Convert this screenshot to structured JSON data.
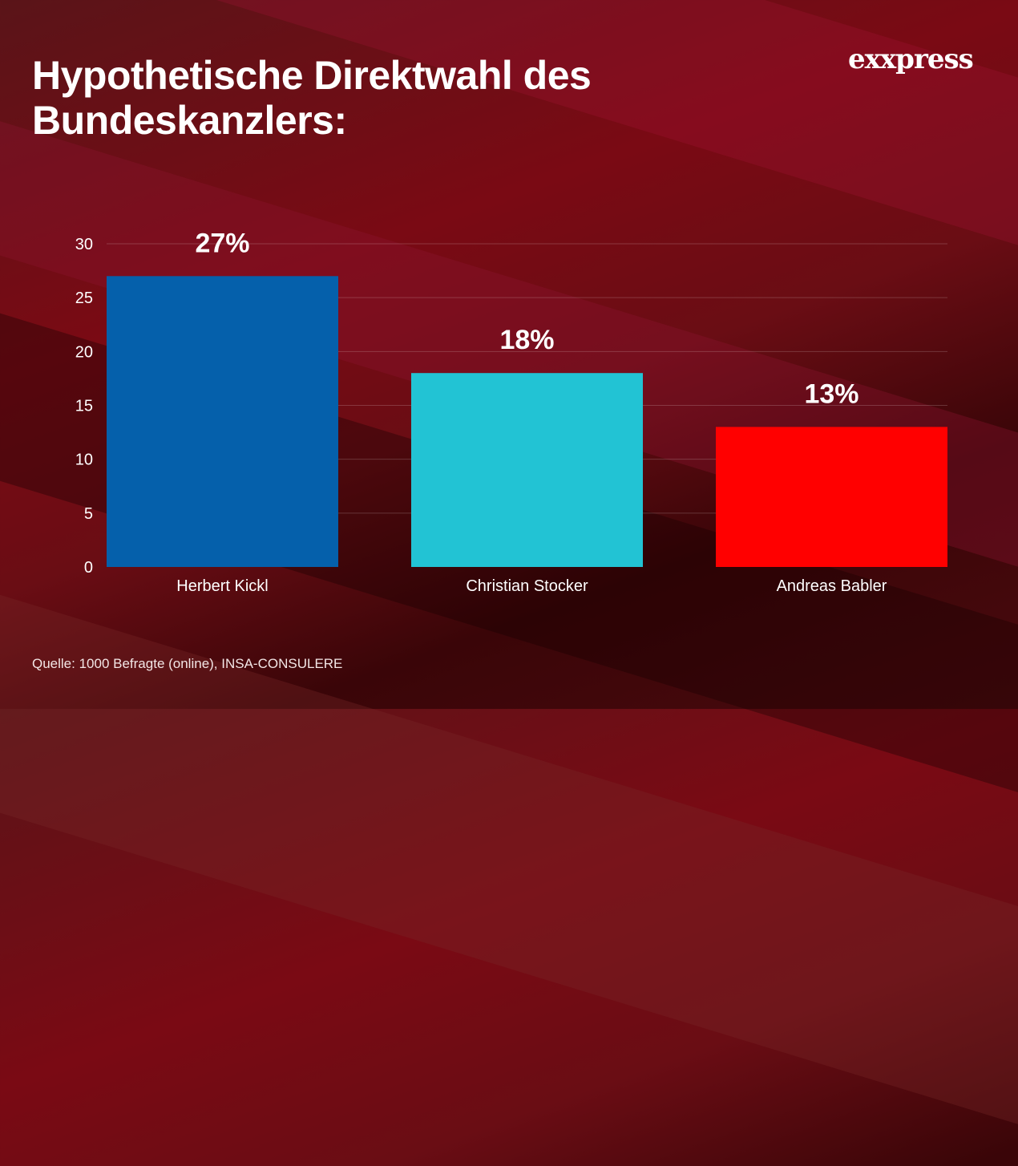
{
  "brand": {
    "logo_text": "exxpress"
  },
  "title": "Hypothetische Direktwahl des Bundeskanzlers:",
  "source": "Quelle:  1000 Befragte (online), INSA-CONSULERE",
  "chart_data": {
    "type": "bar",
    "title": "Hypothetische Direktwahl des Bundeskanzlers:",
    "xlabel": "",
    "ylabel": "",
    "categories": [
      "Herbert Kickl",
      "Christian Stocker",
      "Andreas Babler"
    ],
    "values": [
      27,
      18,
      13
    ],
    "data_labels": [
      "27%",
      "18%",
      "13%"
    ],
    "colors": [
      "#0560ab",
      "#22c3d4",
      "#ff0000"
    ],
    "ylim": [
      0,
      30
    ],
    "yticks": [
      0,
      5,
      10,
      15,
      20,
      25,
      30
    ],
    "grid": true,
    "legend": "none"
  }
}
